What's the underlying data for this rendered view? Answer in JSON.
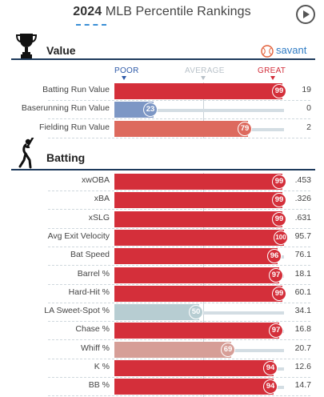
{
  "header": {
    "year": "2024",
    "title": "MLB Percentile Rankings"
  },
  "brand": {
    "name": "savant",
    "color": "#2e7bc4"
  },
  "scale": {
    "poor": "POOR",
    "average": "AVERAGE",
    "great": "GREAT"
  },
  "colors": {
    "great": "#d42f3a",
    "above": "#dd6a5e",
    "average": "#b7cdd2",
    "below_avg_light": "#d69e97",
    "poor": "#7d97c5"
  },
  "sections": {
    "value": {
      "title": "Value",
      "icon": "trophy-icon",
      "rows": [
        {
          "label": "Batting Run Value",
          "pct": 99,
          "value": "19",
          "color": "#d42f3a"
        },
        {
          "label": "Baserunning Run Value",
          "pct": 23,
          "value": "0",
          "color": "#7d97c5"
        },
        {
          "label": "Fielding Run Value",
          "pct": 79,
          "value": "2",
          "color": "#dd6a5e"
        }
      ]
    },
    "batting": {
      "title": "Batting",
      "icon": "batter-icon",
      "rows": [
        {
          "label": "xwOBA",
          "pct": 99,
          "value": ".453",
          "color": "#d42f3a"
        },
        {
          "label": "xBA",
          "pct": 99,
          "value": ".326",
          "color": "#d42f3a"
        },
        {
          "label": "xSLG",
          "pct": 99,
          "value": ".631",
          "color": "#d42f3a"
        },
        {
          "label": "Avg Exit Velocity",
          "pct": 100,
          "value": "95.7",
          "color": "#d42f3a"
        },
        {
          "label": "Bat Speed",
          "pct": 96,
          "value": "76.1",
          "color": "#d42f3a"
        },
        {
          "label": "Barrel %",
          "pct": 97,
          "value": "18.1",
          "color": "#d42f3a"
        },
        {
          "label": "Hard-Hit %",
          "pct": 99,
          "value": "60.1",
          "color": "#d42f3a"
        },
        {
          "label": "LA Sweet-Spot %",
          "pct": 50,
          "value": "34.1",
          "color": "#b7cdd2"
        },
        {
          "label": "Chase %",
          "pct": 97,
          "value": "16.8",
          "color": "#d42f3a"
        },
        {
          "label": "Whiff %",
          "pct": 69,
          "value": "20.7",
          "color": "#d69e97"
        },
        {
          "label": "K %",
          "pct": 94,
          "value": "12.6",
          "color": "#d42f3a"
        },
        {
          "label": "BB %",
          "pct": 94,
          "value": "14.7",
          "color": "#d42f3a"
        }
      ]
    }
  }
}
